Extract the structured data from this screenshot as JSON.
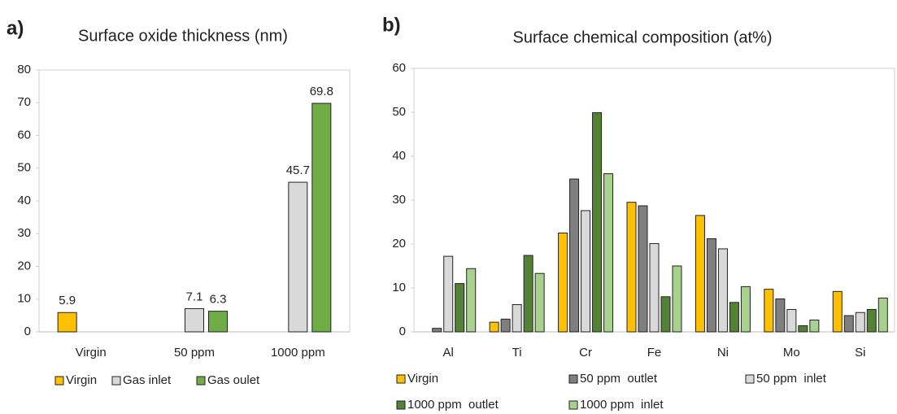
{
  "chart_data": [
    {
      "type": "bar",
      "panel_label": "a)",
      "title": "Surface oxide thickness (nm)",
      "categories": [
        "Virgin",
        "50 ppm",
        "1000 ppm"
      ],
      "series": [
        {
          "name": "Virgin",
          "color": "#ffc000",
          "values": [
            5.9,
            null,
            null
          ]
        },
        {
          "name": "Gas inlet",
          "color": "#d9d9d9",
          "values": [
            null,
            7.1,
            45.7
          ]
        },
        {
          "name": "Gas oulet",
          "color": "#70ad47",
          "values": [
            null,
            6.3,
            69.8
          ]
        }
      ],
      "ylim": [
        0,
        80
      ],
      "yticks": [
        0,
        10,
        20,
        30,
        40,
        50,
        60,
        70,
        80
      ],
      "data_labels": true
    },
    {
      "type": "bar",
      "panel_label": "b)",
      "title": "Surface chemical composition (at%)",
      "categories": [
        "Al",
        "Ti",
        "Cr",
        "Fe",
        "Ni",
        "Mo",
        "Si"
      ],
      "series": [
        {
          "name": "Virgin",
          "color": "#ffc000",
          "values": [
            0,
            2.2,
            22.5,
            29.5,
            26.5,
            9.7,
            9.2
          ]
        },
        {
          "name": "50 ppm  outlet",
          "color": "#7f7f7f",
          "values": [
            0.8,
            2.9,
            34.8,
            28.7,
            21.2,
            7.5,
            3.7
          ]
        },
        {
          "name": "50 ppm  inlet",
          "color": "#d9d9d9",
          "values": [
            17.2,
            6.2,
            27.6,
            20.1,
            18.9,
            5.1,
            4.4
          ]
        },
        {
          "name": "1000 ppm  outlet",
          "color": "#548235",
          "values": [
            11,
            17.4,
            49.9,
            8,
            6.7,
            1.4,
            5.1
          ]
        },
        {
          "name": "1000 ppm  inlet",
          "color": "#a9d18e",
          "values": [
            14.4,
            13.3,
            36,
            15,
            10.3,
            2.7,
            7.7
          ]
        }
      ],
      "ylim": [
        0,
        60
      ],
      "yticks": [
        0,
        10,
        20,
        30,
        40,
        50,
        60
      ],
      "data_labels": false
    }
  ]
}
